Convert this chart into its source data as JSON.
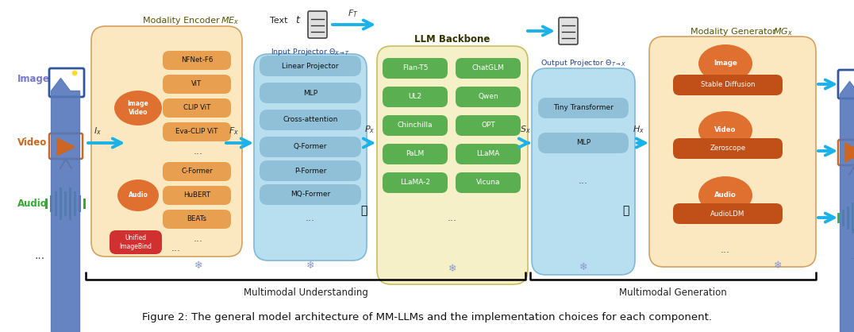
{
  "fig_caption": "Figure 2: The general model architecture of MM-LLMs and the implementation choices for each component.",
  "bg_color": "#ffffff",
  "arrow_color": "#1ab2e8",
  "orange_bg": "#fce8c0",
  "orange_ellipse": "#e07030",
  "blue_bg": "#b8dff0",
  "green_box": "#5ab050",
  "red_box": "#d03030",
  "dark_orange_box": "#c05018",
  "llm_bg": "#f5f0c8",
  "encoder_box_color": "#e8a050",
  "proj_box_color": "#90c0d8",
  "modality_encoder_title": "Modality Encoder ",
  "modality_generator_title": "Modality Generator ",
  "llm_title": "LLM Backbone",
  "encoder_boxes": [
    "NFNet-F6",
    "ViT",
    "CLIP ViT",
    "Eva-CLIP ViT",
    "...",
    "C-Former",
    "HuBERT",
    "BEATs",
    "..."
  ],
  "input_proj_boxes": [
    "Linear Projector",
    "MLP",
    "Cross-attention",
    "Q-Former",
    "P-Former",
    "MQ-Former",
    "..."
  ],
  "llm_boxes_left": [
    "Flan-T5",
    "UL2",
    "Chinchilla",
    "PaLM",
    "LLaMA-2"
  ],
  "llm_boxes_right": [
    "ChatGLM",
    "Qwen",
    "OPT",
    "LLaMA",
    "Vicuna"
  ],
  "output_proj_boxes": [
    "Tiny Transformer",
    "MLP",
    "..."
  ],
  "gen_ellipses": [
    "Image",
    "Video",
    "Audio"
  ],
  "gen_boxes": [
    "Stable Diffusion",
    "Zeroscope",
    "AudioLDM"
  ],
  "bracket_label_left": "Multimodal Understanding",
  "bracket_label_right": "Multimodal Generation"
}
